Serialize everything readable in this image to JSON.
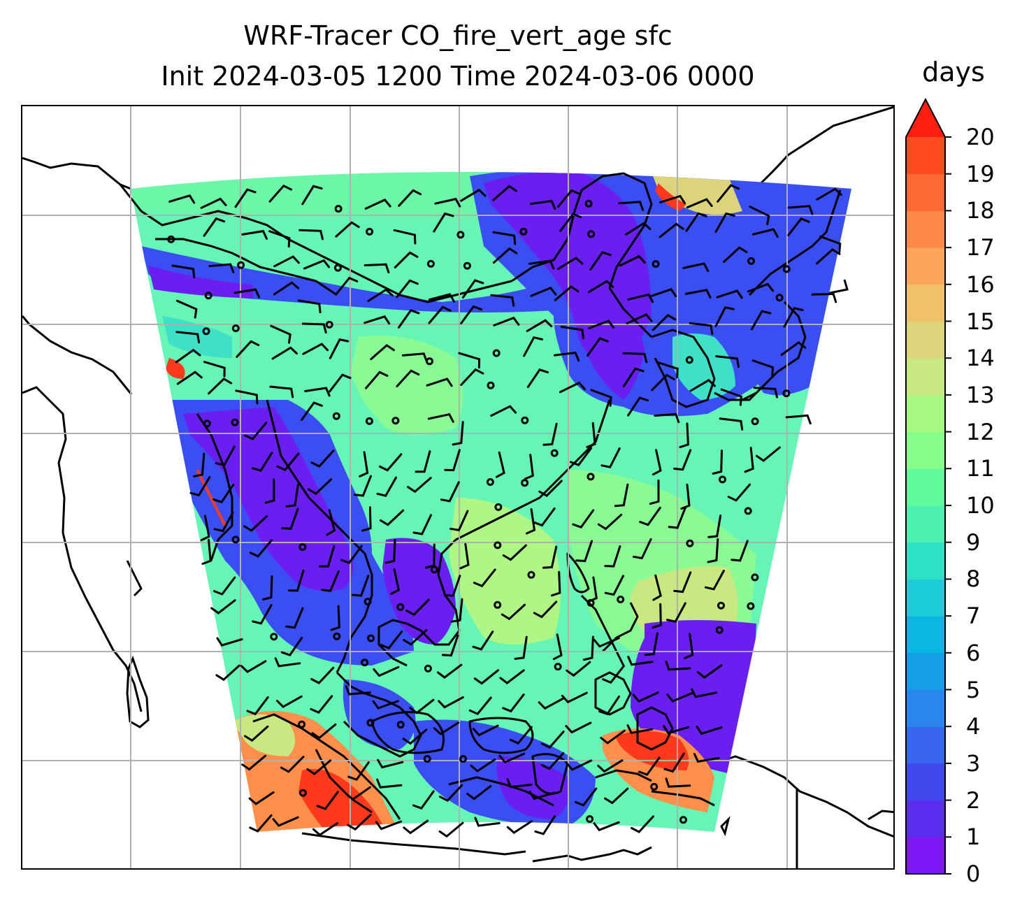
{
  "title": {
    "line1": "WRF-Tracer CO_fire_vert_age sfc",
    "line2": "Init 2024-03-05 1200 Time 2024-03-06 0000"
  },
  "colorbar": {
    "unit": "days",
    "ticks": [
      "0",
      "1",
      "2",
      "3",
      "4",
      "5",
      "6",
      "7",
      "8",
      "9",
      "10",
      "11",
      "12",
      "13",
      "14",
      "15",
      "16",
      "17",
      "18",
      "19",
      "20"
    ],
    "extend": "max",
    "colors": [
      "#7b18f5",
      "#5a2df0",
      "#4048ec",
      "#3966f0",
      "#2a86ec",
      "#159ee6",
      "#0ab7e0",
      "#1acdd8",
      "#2ee0c6",
      "#4cf1b0",
      "#62fb9c",
      "#86fd8a",
      "#a8f684",
      "#c8e882",
      "#dcd47a",
      "#f0c06a",
      "#fba65c",
      "#ff8848",
      "#ff6a34",
      "#ff4a22",
      "#ff1e10"
    ]
  },
  "map": {
    "field_colors": {
      "purple": "#6a1ff0",
      "blue": "#3a4ef2",
      "cyan": "#3fe0c8",
      "aqua": "#66f5b4",
      "green": "#8afa94",
      "lime": "#aef686",
      "orange": "#ff8f4a",
      "red": "#ff3a1c"
    },
    "gridlines": "on",
    "coastlines": "on",
    "wind_barbs": "on"
  }
}
